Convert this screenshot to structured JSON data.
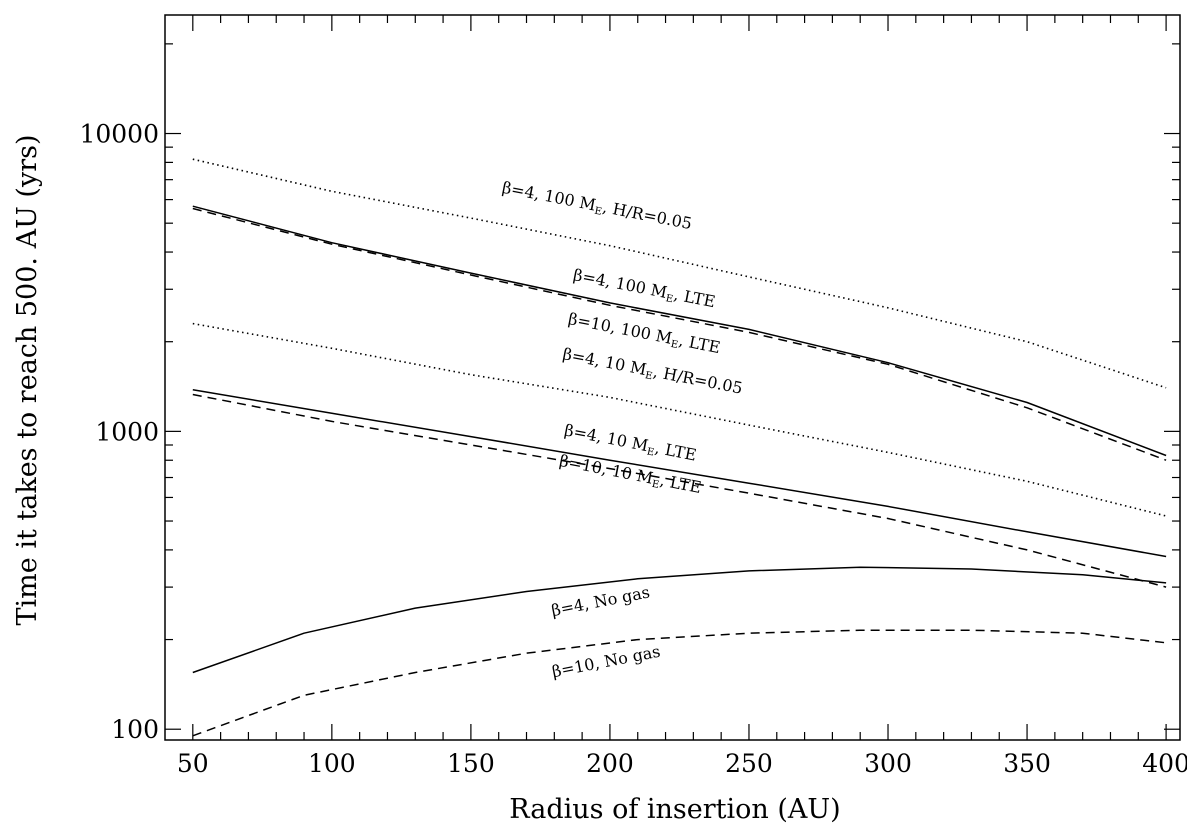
{
  "chart_data": {
    "type": "line",
    "title": "",
    "xlabel": "Radius of insertion (AU)",
    "ylabel": "Time it takes to reach 500. AU (yrs)",
    "xlim": [
      40,
      405
    ],
    "ylim": [
      92,
      25000
    ],
    "yscale": "log",
    "grid": false,
    "x_ticks": [
      50,
      100,
      150,
      200,
      250,
      300,
      350,
      400
    ],
    "x_tick_labels": [
      "50",
      "100",
      "150",
      "200",
      "250",
      "300",
      "350",
      "400"
    ],
    "y_ticks": [
      100,
      1000,
      10000
    ],
    "y_tick_labels": [
      "100",
      "1000",
      "10000"
    ],
    "series": [
      {
        "style": "dotted",
        "x": [
          50,
          100,
          150,
          200,
          250,
          300,
          350,
          400
        ],
        "y": [
          8200,
          6400,
          5200,
          4200,
          3300,
          2600,
          2000,
          1400
        ]
      },
      {
        "style": "solid",
        "x": [
          50,
          100,
          150,
          200,
          250,
          300,
          350,
          400
        ],
        "y": [
          5700,
          4300,
          3400,
          2700,
          2200,
          1700,
          1250,
          830
        ]
      },
      {
        "style": "dashed",
        "x": [
          50,
          100,
          150,
          200,
          250,
          300,
          350,
          400
        ],
        "y": [
          5600,
          4250,
          3350,
          2650,
          2150,
          1680,
          1200,
          800
        ]
      },
      {
        "style": "dotted",
        "x": [
          50,
          100,
          150,
          200,
          250,
          300,
          350,
          400
        ],
        "y": [
          2300,
          1900,
          1550,
          1300,
          1050,
          850,
          680,
          520
        ]
      },
      {
        "style": "solid",
        "x": [
          50,
          100,
          150,
          200,
          250,
          300,
          350,
          400
        ],
        "y": [
          1380,
          1150,
          960,
          800,
          670,
          560,
          460,
          380
        ]
      },
      {
        "style": "dashed",
        "x": [
          50,
          100,
          150,
          200,
          250,
          300,
          350,
          400
        ],
        "y": [
          1330,
          1080,
          900,
          750,
          620,
          510,
          400,
          300
        ]
      },
      {
        "style": "solid",
        "x": [
          50,
          90,
          130,
          170,
          210,
          250,
          290,
          330,
          370,
          400
        ],
        "y": [
          155,
          210,
          255,
          290,
          320,
          340,
          350,
          345,
          330,
          310
        ]
      },
      {
        "style": "dashed",
        "x": [
          50,
          90,
          130,
          170,
          210,
          250,
          290,
          330,
          370,
          400
        ],
        "y": [
          95,
          130,
          155,
          180,
          200,
          210,
          215,
          215,
          210,
          195
        ]
      }
    ],
    "annotations": [
      {
        "text": "β=4, 100 M",
        "sub": "E",
        "tail": ", H/R=0.05",
        "x": 195,
        "y": 5500,
        "angle": 11
      },
      {
        "text": "β=4, 100 M",
        "sub": "E",
        "tail": ", LTE",
        "x": 212,
        "y": 2900,
        "angle": 11
      },
      {
        "text": "β=10, 100 M",
        "sub": "E",
        "tail": ", LTE",
        "x": 212,
        "y": 2050,
        "angle": 11
      },
      {
        "text": "β=4, 10 M",
        "sub": "E",
        "tail": ", H/R=0.05",
        "x": 215,
        "y": 1530,
        "angle": 11
      },
      {
        "text": "β=4, 10 M",
        "sub": "E",
        "tail": ", LTE",
        "x": 207,
        "y": 880,
        "angle": 11
      },
      {
        "text": "β=10, 10 M",
        "sub": "E",
        "tail": ", LTE",
        "x": 207,
        "y": 690,
        "angle": 11
      },
      {
        "text": "β=4, No gas",
        "sub": "",
        "tail": "",
        "x": 197,
        "y": 258,
        "angle": -11
      },
      {
        "text": "β=10, No gas",
        "sub": "",
        "tail": "",
        "x": 199,
        "y": 162,
        "angle": -11
      }
    ]
  }
}
